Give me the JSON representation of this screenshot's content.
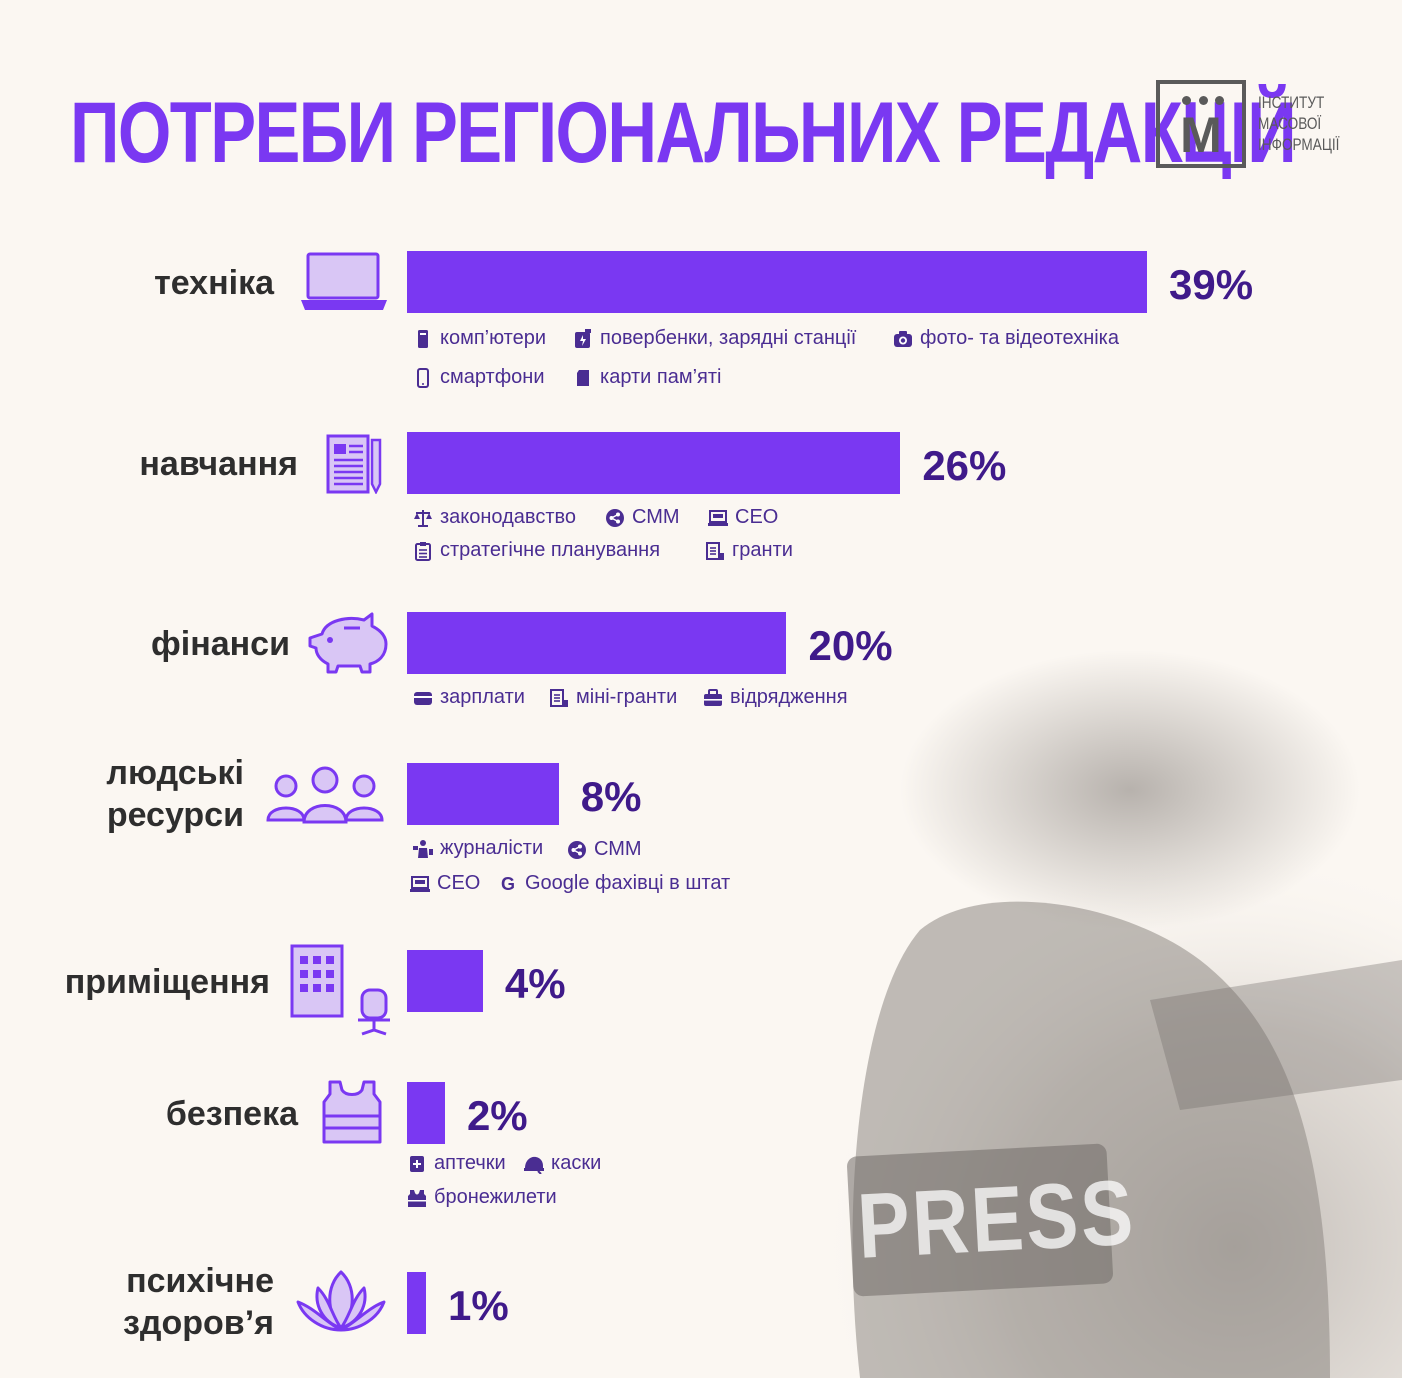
{
  "title": "ПОТРЕБИ РЕГІОНАЛЬНИХ РЕДАКЦІЙ",
  "logo": {
    "letter": "М",
    "lines": [
      "ІНСТИТУТ",
      "МАСОВОЇ",
      "ІНФОРМАЦІЇ"
    ]
  },
  "photo_text": "PRESS",
  "colors": {
    "accent": "#7a38f2",
    "percent": "#3f1a8a",
    "icon_fill": "#d9c6f5",
    "background": "#fbf7f2"
  },
  "chart_data": {
    "type": "bar",
    "orientation": "horizontal",
    "title": "ПОТРЕБИ РЕГІОНАЛЬНИХ РЕДАКЦІЙ",
    "categories": [
      "техніка",
      "навчання",
      "фінанси",
      "людські ресурси",
      "приміщення",
      "безпека",
      "психічне здоров’я"
    ],
    "values": [
      39,
      26,
      20,
      8,
      4,
      2,
      1
    ],
    "value_labels": [
      "39%",
      "26%",
      "20%",
      "8%",
      "4%",
      "2%",
      "1%"
    ],
    "unit": "%",
    "details": [
      [
        "комп’ютери",
        "повербенки, зарядні станції",
        "фото- та відеотехніка",
        "смартфони",
        "карти пам’яті"
      ],
      [
        "законодавство",
        "СММ",
        "СЕО",
        "стратегічне планування",
        "гранти"
      ],
      [
        "зарплати",
        "міні-гранти",
        "відрядження"
      ],
      [
        "журналісти",
        "СММ",
        "СЕО",
        "Google фахівці в штат"
      ],
      [],
      [
        "аптечки",
        "каски",
        "бронежилети"
      ],
      []
    ]
  },
  "rows": [
    {
      "label_lines": [
        "техніка"
      ],
      "percent": "39%",
      "icon": "laptop-icon"
    },
    {
      "label_lines": [
        "навчання"
      ],
      "percent": "26%",
      "icon": "document-pen-icon"
    },
    {
      "label_lines": [
        "фінанси"
      ],
      "percent": "20%",
      "icon": "piggy-bank-icon"
    },
    {
      "label_lines": [
        "людські",
        "ресурси"
      ],
      "percent": "8%",
      "icon": "people-icon"
    },
    {
      "label_lines": [
        "приміщення"
      ],
      "percent": "4%",
      "icon": "building-chair-icon"
    },
    {
      "label_lines": [
        "безпека"
      ],
      "percent": "2%",
      "icon": "vest-icon"
    },
    {
      "label_lines": [
        "психічне",
        "здоров’я"
      ],
      "percent": "1%",
      "icon": "lotus-icon"
    }
  ],
  "details": [
    [
      {
        "text": "комп’ютери",
        "icon": "desktop-icon"
      },
      {
        "text": "повербенки, зарядні станції",
        "icon": "battery-icon"
      },
      {
        "text": "фото- та відеотехніка",
        "icon": "camera-icon"
      },
      {
        "text": "смартфони",
        "icon": "smartphone-icon"
      },
      {
        "text": "карти пам’яті",
        "icon": "sd-card-icon"
      }
    ],
    [
      {
        "text": "законодавство",
        "icon": "scales-icon"
      },
      {
        "text": "СММ",
        "icon": "share-icon"
      },
      {
        "text": "СЕО",
        "icon": "seo-laptop-icon"
      },
      {
        "text": "стратегічне планування",
        "icon": "clipboard-icon"
      },
      {
        "text": "гранти",
        "icon": "grant-doc-icon"
      }
    ],
    [
      {
        "text": "зарплати",
        "icon": "wallet-icon"
      },
      {
        "text": "міні-гранти",
        "icon": "grant-doc-icon"
      },
      {
        "text": "відрядження",
        "icon": "suitcase-icon"
      }
    ],
    [
      {
        "text": "журналісти",
        "icon": "journalist-icon"
      },
      {
        "text": "СММ",
        "icon": "share-icon"
      },
      {
        "text": "СЕО",
        "icon": "seo-laptop-icon"
      },
      {
        "text": "Google фахівці в штат",
        "icon": "google-icon"
      }
    ],
    [],
    [
      {
        "text": "аптечки",
        "icon": "first-aid-icon"
      },
      {
        "text": "каски",
        "icon": "helmet-icon"
      },
      {
        "text": "бронежилети",
        "icon": "armor-vest-icon"
      }
    ],
    []
  ]
}
